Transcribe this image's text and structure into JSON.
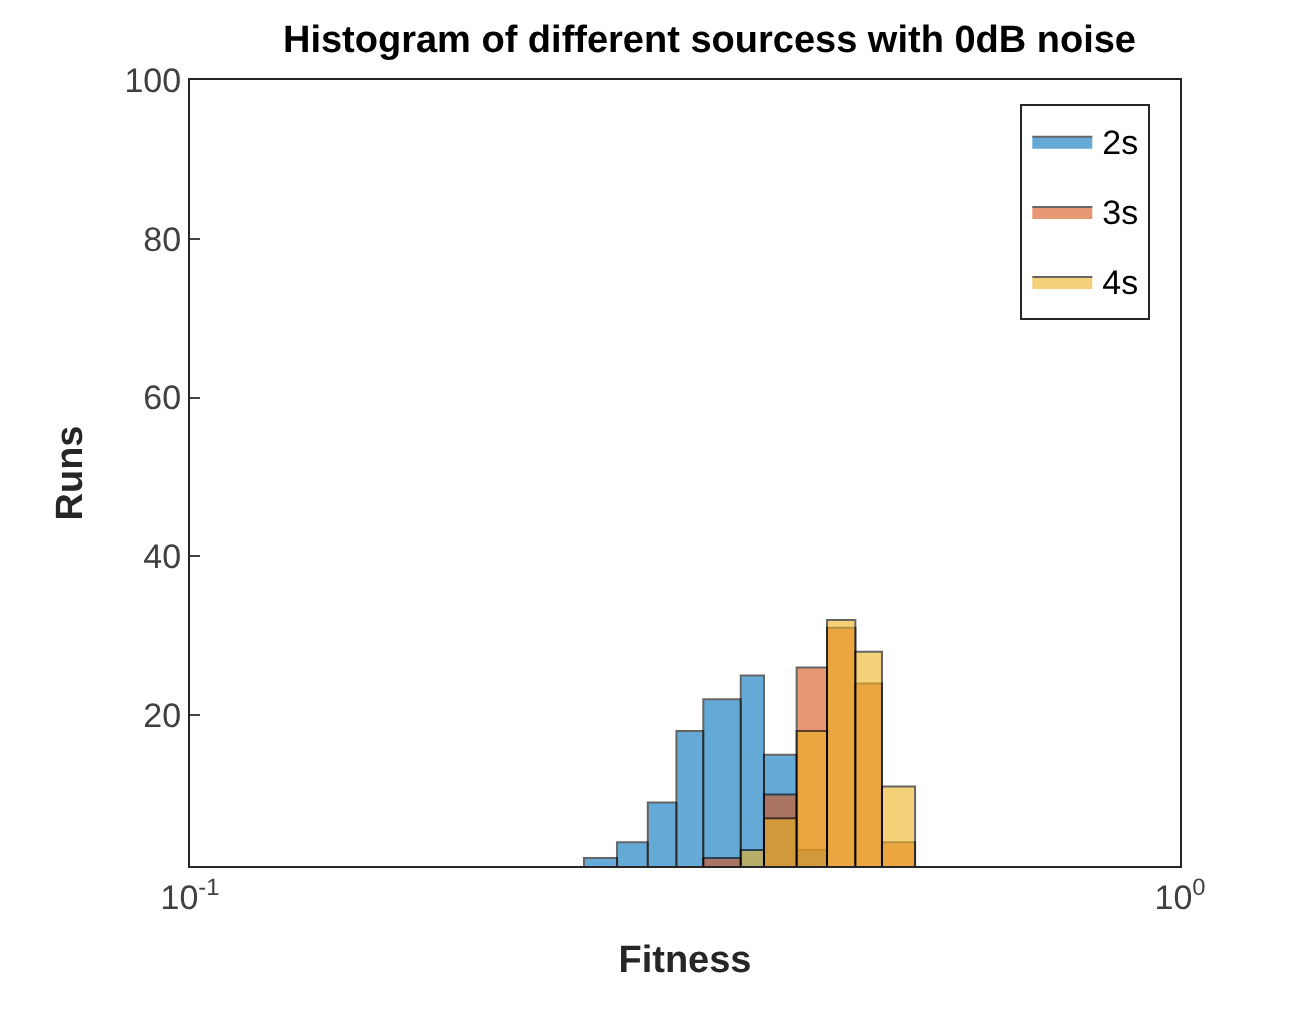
{
  "chart_data": {
    "type": "histogram",
    "title": "Histogram of different sourcess with 0dB noise",
    "xlabel": "Fitness",
    "ylabel": "Runs",
    "bins": [
      0.25,
      0.27,
      0.29,
      0.31,
      0.33,
      0.36,
      0.38,
      0.41,
      0.44,
      0.47,
      0.5,
      0.54
    ],
    "series": [
      {
        "name": "2s",
        "color": "#0072bd",
        "values": [
          2,
          4,
          9,
          18,
          22,
          25,
          15,
          3,
          null,
          null,
          null
        ]
      },
      {
        "name": "3s",
        "color": "#d95319",
        "values": [
          null,
          null,
          null,
          null,
          2,
          null,
          10,
          26,
          31,
          24,
          4
        ]
      },
      {
        "name": "4s",
        "color": "#edb120",
        "values": [
          null,
          null,
          null,
          null,
          null,
          3,
          7,
          18,
          32,
          28,
          11
        ]
      }
    ],
    "log": "x",
    "xlim": [
      0.1,
      1
    ],
    "xticks": [
      {
        "value": 0.1,
        "label": "10$^{-1}$"
      },
      {
        "value": 1,
        "label": "10$^{0}$"
      }
    ],
    "ylim": [
      1,
      100
    ],
    "yticks": [
      20,
      40,
      60,
      80,
      100
    ],
    "legend": "top right"
  }
}
